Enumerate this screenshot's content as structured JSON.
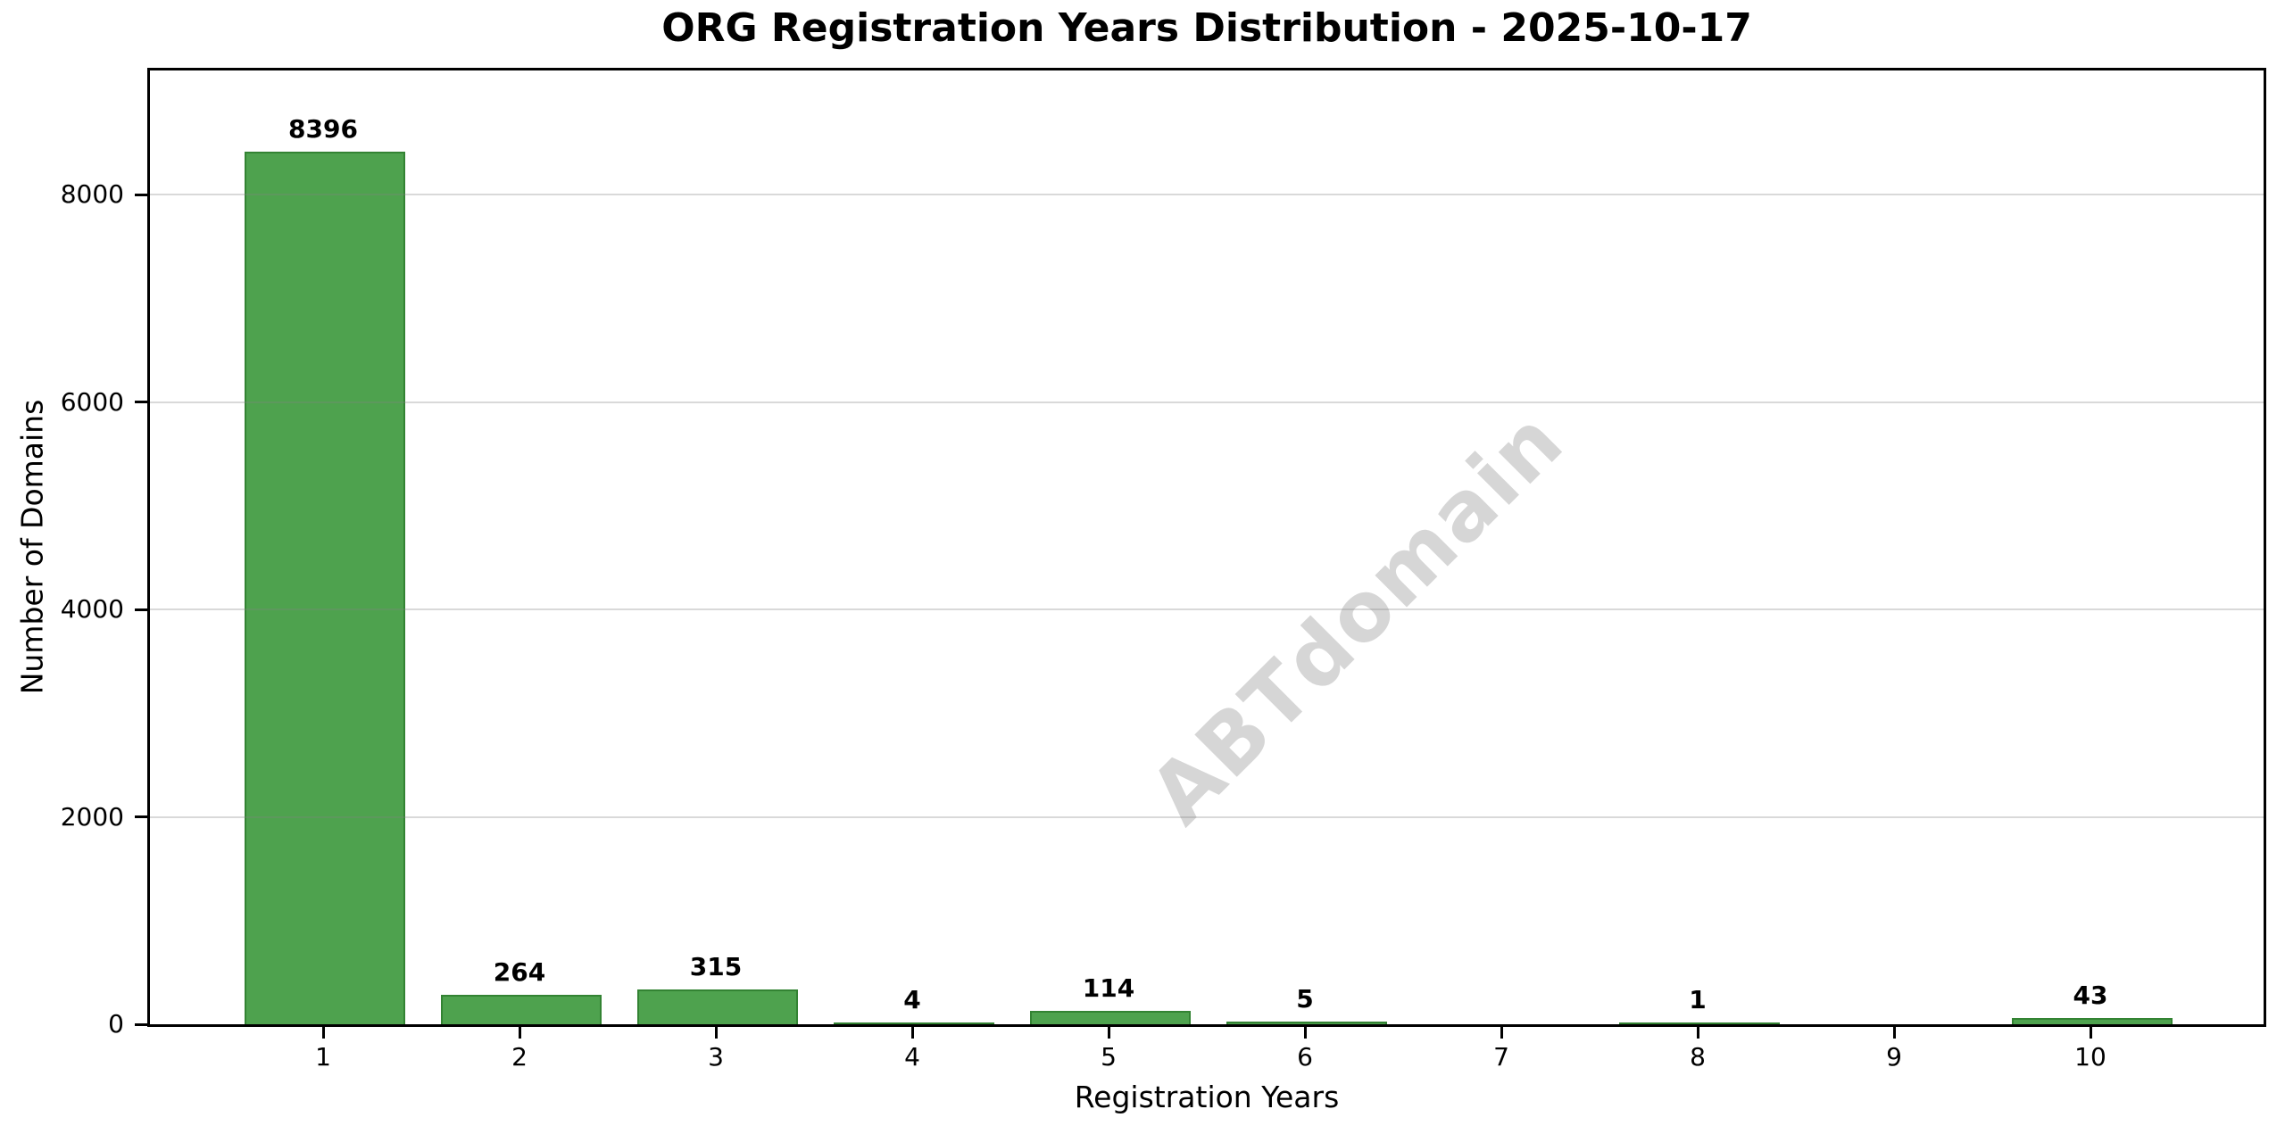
{
  "title": "ORG Registration Years Distribution - 2025-10-17",
  "chart_data": {
    "type": "bar",
    "title": "ORG Registration Years Distribution - 2025-10-17",
    "categories": [
      "1",
      "2",
      "3",
      "4",
      "5",
      "6",
      "7",
      "8",
      "9",
      "10"
    ],
    "values": [
      8396,
      264,
      315,
      4,
      114,
      5,
      0,
      1,
      0,
      43
    ],
    "bar_labels": [
      "8396",
      "264",
      "315",
      "4",
      "114",
      "5",
      "",
      "1",
      "",
      "43"
    ],
    "xlabel": "Registration Years",
    "ylabel": "Number of Domains",
    "yticks": [
      0,
      2000,
      4000,
      6000,
      8000
    ],
    "ytick_labels": [
      "0",
      "2000",
      "4000",
      "6000",
      "8000"
    ],
    "ylim": [
      0,
      9247
    ],
    "grid": "horizontal-only, drawn over bars, alpha 0.3",
    "legend": "none",
    "bar_color": "#4ea24e",
    "bar_edge_color": "#338333",
    "gridline_color": "#d9d9d9",
    "watermark": "ABTdomain",
    "watermark_color": "#d6d6d6",
    "watermark_rotation_deg": -45
  }
}
